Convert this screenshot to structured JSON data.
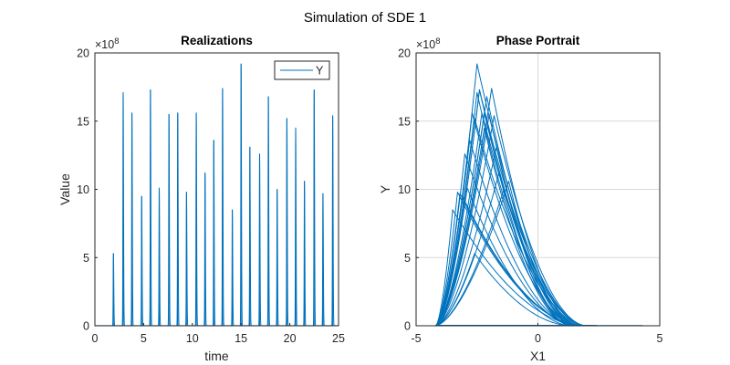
{
  "figure": {
    "title": "Simulation of SDE 1"
  },
  "colors": {
    "series": "#0072BD",
    "axis": "#262626",
    "grid": "#d9d9d9"
  },
  "chart_data": [
    {
      "type": "line",
      "title": "Realizations",
      "xlabel": "time",
      "ylabel": "Value",
      "xlim": [
        0,
        25
      ],
      "ylim": [
        0,
        20
      ],
      "y_exponent_label": "×10",
      "y_exponent_power": "8",
      "xticks": [
        0,
        5,
        10,
        15,
        20,
        25
      ],
      "yticks": [
        0,
        5,
        10,
        15,
        20
      ],
      "grid": false,
      "legend_position": "top-right",
      "series": [
        {
          "name": "Y",
          "spikes": [
            {
              "t": 1.9,
              "peak": 5.3
            },
            {
              "t": 2.9,
              "peak": 17.1
            },
            {
              "t": 3.8,
              "peak": 15.6
            },
            {
              "t": 4.8,
              "peak": 9.5
            },
            {
              "t": 5.7,
              "peak": 17.3
            },
            {
              "t": 6.6,
              "peak": 10.1
            },
            {
              "t": 7.6,
              "peak": 15.5
            },
            {
              "t": 8.5,
              "peak": 15.6
            },
            {
              "t": 9.4,
              "peak": 9.8
            },
            {
              "t": 10.4,
              "peak": 15.6
            },
            {
              "t": 11.3,
              "peak": 11.2
            },
            {
              "t": 12.2,
              "peak": 13.6
            },
            {
              "t": 13.1,
              "peak": 17.4
            },
            {
              "t": 14.1,
              "peak": 8.5
            },
            {
              "t": 15.0,
              "peak": 19.2
            },
            {
              "t": 15.9,
              "peak": 13.1
            },
            {
              "t": 16.9,
              "peak": 12.6
            },
            {
              "t": 17.8,
              "peak": 16.8
            },
            {
              "t": 18.7,
              "peak": 10.0
            },
            {
              "t": 19.7,
              "peak": 15.2
            },
            {
              "t": 20.6,
              "peak": 14.5
            },
            {
              "t": 21.5,
              "peak": 10.6
            },
            {
              "t": 22.5,
              "peak": 17.3
            },
            {
              "t": 23.4,
              "peak": 9.7
            },
            {
              "t": 24.4,
              "peak": 15.4
            }
          ]
        }
      ]
    },
    {
      "type": "line",
      "title": "Phase Portrait",
      "xlabel": "X1",
      "ylabel": "Y",
      "xlim": [
        -5,
        5
      ],
      "ylim": [
        0,
        20
      ],
      "y_exponent_label": "×10",
      "y_exponent_power": "8",
      "xticks": [
        -5,
        0,
        5
      ],
      "yticks": [
        0,
        5,
        10,
        15,
        20
      ],
      "grid": true,
      "series": [
        {
          "name": "",
          "loops": [
            {
              "peak_x": -2.6,
              "peak": 5.3
            },
            {
              "peak_x": -2.5,
              "peak": 17.1
            },
            {
              "peak_x": -2.2,
              "peak": 15.6
            },
            {
              "peak_x": -3.1,
              "peak": 9.5
            },
            {
              "peak_x": -2.4,
              "peak": 17.3
            },
            {
              "peak_x": -2.9,
              "peak": 10.1
            },
            {
              "peak_x": -2.0,
              "peak": 15.5
            },
            {
              "peak_x": -2.7,
              "peak": 15.6
            },
            {
              "peak_x": -3.3,
              "peak": 9.8
            },
            {
              "peak_x": -2.3,
              "peak": 15.6
            },
            {
              "peak_x": -1.6,
              "peak": 11.2
            },
            {
              "peak_x": -2.8,
              "peak": 13.6
            },
            {
              "peak_x": -1.9,
              "peak": 17.4
            },
            {
              "peak_x": -3.5,
              "peak": 8.5
            },
            {
              "peak_x": -2.5,
              "peak": 19.2
            },
            {
              "peak_x": -1.7,
              "peak": 13.1
            },
            {
              "peak_x": -3.0,
              "peak": 12.6
            },
            {
              "peak_x": -2.1,
              "peak": 16.8
            },
            {
              "peak_x": -1.4,
              "peak": 10.0
            },
            {
              "peak_x": -2.6,
              "peak": 15.2
            },
            {
              "peak_x": -2.2,
              "peak": 14.5
            },
            {
              "peak_x": -1.2,
              "peak": 10.6
            },
            {
              "peak_x": -2.4,
              "peak": 17.3
            },
            {
              "peak_x": -3.2,
              "peak": 9.7
            },
            {
              "peak_x": -1.8,
              "peak": 15.4
            }
          ],
          "low_branch_end_x": 4.3
        }
      ]
    }
  ]
}
